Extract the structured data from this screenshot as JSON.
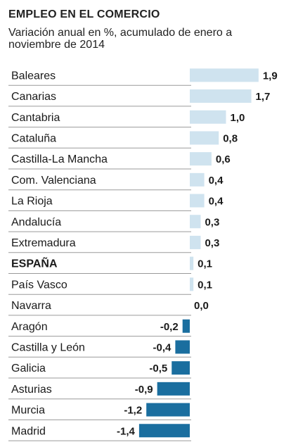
{
  "chart_data": {
    "type": "bar",
    "orientation": "horizontal",
    "title": "EMPLEO EN EL COMERCIO",
    "subtitle": "Variación anual en %, acumulado de enero a noviembre de 2014",
    "categories": [
      "Baleares",
      "Canarias",
      "Cantabria",
      "Cataluña",
      "Castilla-La Mancha",
      "Com. Valenciana",
      "La Rioja",
      "Andalucía",
      "Extremadura",
      "ESPAÑA",
      "País Vasco",
      "Navarra",
      "Aragón",
      "Castilla y León",
      "Galicia",
      "Asturias",
      "Murcia",
      "Madrid"
    ],
    "values": [
      1.9,
      1.7,
      1.0,
      0.8,
      0.6,
      0.4,
      0.4,
      0.3,
      0.3,
      0.1,
      0.1,
      0.0,
      -0.2,
      -0.4,
      -0.5,
      -0.9,
      -1.2,
      -1.4
    ],
    "value_labels": [
      "1,9",
      "1,7",
      "1,0",
      "0,8",
      "0,6",
      "0,4",
      "0,4",
      "0,3",
      "0,3",
      "0,1",
      "0,1",
      "0,0",
      "-0,2",
      "-0,4",
      "-0,5",
      "-0,9",
      "-1,2",
      "-1,4"
    ],
    "highlight": "ESPAÑA",
    "colors": {
      "positive": "#cfe3ef",
      "negative": "#1a6e9f",
      "separator": "#9a9a9a"
    },
    "grid": false,
    "legend": "none"
  }
}
